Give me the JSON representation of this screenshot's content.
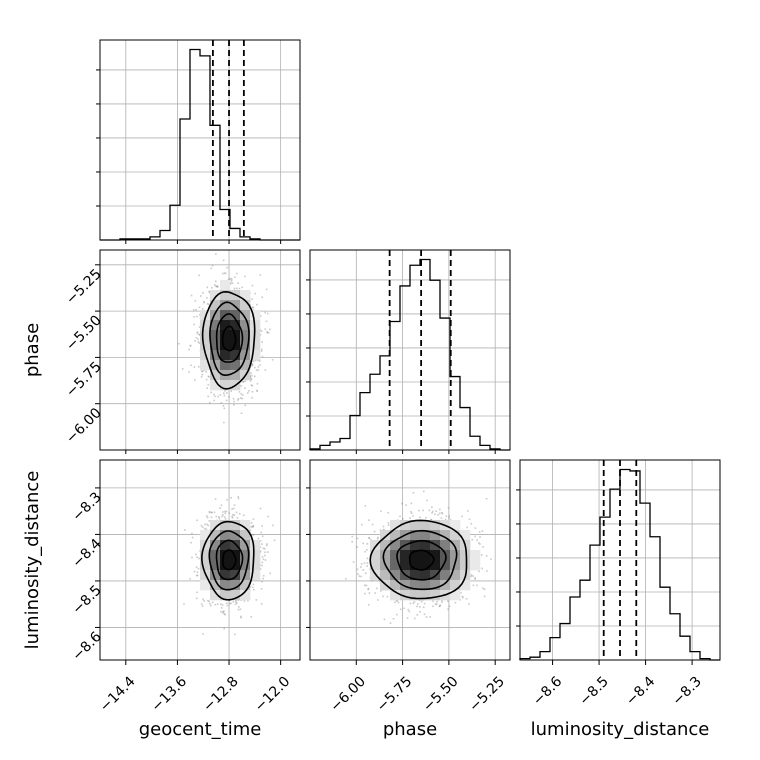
{
  "chart_data": {
    "type": "corner",
    "parameters": [
      "geocent_time",
      "phase",
      "luminosity_distance"
    ],
    "axis_labels": {
      "geocent_time": "geocent_time",
      "phase": "phase",
      "luminosity_distance": "luminosity_distance"
    },
    "ranges": {
      "geocent_time": [
        -14.8,
        -11.7
      ],
      "phase": [
        -6.25,
        -5.17
      ],
      "luminosity_distance": [
        -8.67,
        -8.24
      ]
    },
    "ticks": {
      "geocent_time": {
        "values": [
          -14.4,
          -13.6,
          -12.8,
          -12.0
        ],
        "labels": [
          "−14.4",
          "−13.6",
          "−12.8",
          "−12.0"
        ]
      },
      "phase": {
        "values": [
          -6.0,
          -5.75,
          -5.5,
          -5.25
        ],
        "labels": [
          "−6.00",
          "−5.75",
          "−5.50",
          "−5.25"
        ]
      },
      "luminosity_distance": {
        "values": [
          -8.6,
          -8.5,
          -8.4,
          -8.3
        ],
        "labels": [
          "−8.6",
          "−8.5",
          "−8.4",
          "−8.3"
        ]
      }
    },
    "grid": true,
    "quantile_lines": {
      "geocent_time": [
        -13.05,
        -12.8,
        -12.57
      ],
      "phase": [
        -5.82,
        -5.65,
        -5.49
      ],
      "luminosity_distance": [
        -8.49,
        -8.455,
        -8.42
      ]
    },
    "histograms": {
      "geocent_time": {
        "edges": [
          -14.8,
          -14.645,
          -14.49,
          -14.335,
          -14.18,
          -14.025,
          -13.87,
          -13.715,
          -13.56,
          -13.405,
          -13.25,
          -13.095,
          -12.94,
          -12.785,
          -12.63,
          -12.475,
          -12.32,
          -12.165,
          -12.01,
          -11.855,
          -11.7
        ],
        "counts": [
          0,
          0,
          1,
          1,
          1,
          3,
          9,
          33,
          115,
          181,
          175,
          109,
          29,
          11,
          3,
          1,
          0,
          0,
          0,
          0
        ]
      },
      "phase": {
        "edges": [
          -6.25,
          -6.196,
          -6.142,
          -6.088,
          -6.034,
          -5.98,
          -5.926,
          -5.872,
          -5.818,
          -5.764,
          -5.71,
          -5.656,
          -5.602,
          -5.548,
          -5.494,
          -5.44,
          -5.386,
          -5.332,
          -5.278,
          -5.224,
          -5.17
        ],
        "counts": [
          1,
          4,
          7,
          10,
          30,
          50,
          66,
          82,
          112,
          143,
          161,
          166,
          148,
          115,
          64,
          37,
          12,
          4,
          1,
          0
        ]
      },
      "luminosity_distance": {
        "edges": [
          -8.67,
          -8.6485,
          -8.627,
          -8.6055,
          -8.584,
          -8.5625,
          -8.541,
          -8.5195,
          -8.498,
          -8.4765,
          -8.455,
          -8.4335,
          -8.412,
          -8.3905,
          -8.369,
          -8.3475,
          -8.326,
          -8.3045,
          -8.283,
          -8.2615,
          -8.24
        ],
        "counts": [
          1,
          2,
          6,
          16,
          26,
          45,
          57,
          82,
          102,
          122,
          136,
          135,
          112,
          88,
          52,
          33,
          17,
          6,
          1,
          0
        ]
      }
    },
    "joint_distributions": [
      {
        "x": "geocent_time",
        "y": "phase",
        "center": [
          -12.8,
          -5.65
        ],
        "sigma": [
          0.2,
          0.13
        ],
        "contour_levels_sigma": [
          0.5,
          1.0,
          1.5,
          2.0
        ]
      },
      {
        "x": "geocent_time",
        "y": "luminosity_distance",
        "center": [
          -12.8,
          -8.455
        ],
        "sigma": [
          0.2,
          0.042
        ],
        "contour_levels_sigma": [
          0.5,
          1.0,
          1.5,
          2.0
        ]
      },
      {
        "x": "phase",
        "y": "luminosity_distance",
        "center": [
          -5.65,
          -8.455
        ],
        "sigma": [
          0.13,
          0.042
        ],
        "contour_levels_sigma": [
          0.5,
          1.0,
          1.5,
          2.0
        ]
      }
    ]
  }
}
